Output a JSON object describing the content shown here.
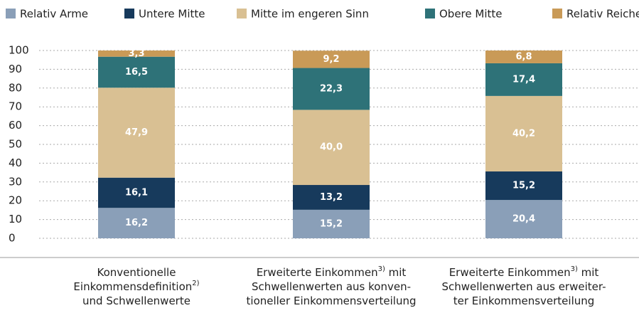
{
  "chart_data": {
    "type": "stacked_bar",
    "categories": [
      [
        [
          "Konventionelle"
        ],
        [
          "Einkommensdefinition",
          "2)"
        ],
        [
          "und Schwellenwerte"
        ]
      ],
      [
        [
          "Erweiterte Einkommen",
          "3)",
          " mit"
        ],
        [
          "Schwellenwerten aus konven-"
        ],
        [
          "tioneller Einkommensverteilung"
        ]
      ],
      [
        [
          "Erweiterte Einkommen",
          "3)",
          " mit"
        ],
        [
          "Schwellenwerten aus erweiter-"
        ],
        [
          "ter Einkommensverteilung"
        ]
      ]
    ],
    "series": [
      {
        "name": "Relativ Arme",
        "color": "#8a9fb8",
        "values": [
          16.2,
          15.2,
          20.4
        ],
        "value_labels": [
          "16,2",
          "15,2",
          "20,4"
        ]
      },
      {
        "name": "Untere Mitte",
        "color": "#173a5c",
        "values": [
          16.1,
          13.2,
          15.2
        ],
        "value_labels": [
          "16,1",
          "13,2",
          "15,2"
        ]
      },
      {
        "name": "Mitte im engeren Sinn",
        "color": "#d9c093",
        "values": [
          47.9,
          40.0,
          40.2
        ],
        "value_labels": [
          "47,9",
          "40,0",
          "40,2"
        ]
      },
      {
        "name": "Obere Mitte",
        "color": "#2e7278",
        "values": [
          16.5,
          22.3,
          17.4
        ],
        "value_labels": [
          "16,5",
          "22,3",
          "17,4"
        ]
      },
      {
        "name": "Relativ Reiche",
        "color": "#c99a57",
        "values": [
          3.3,
          9.2,
          6.8
        ],
        "value_labels": [
          "3,3",
          "9,2",
          "6,8"
        ]
      }
    ],
    "ylim": [
      0,
      100
    ],
    "yticks": [
      0,
      10,
      20,
      30,
      40,
      50,
      60,
      70,
      80,
      90,
      100
    ],
    "grid": true
  }
}
